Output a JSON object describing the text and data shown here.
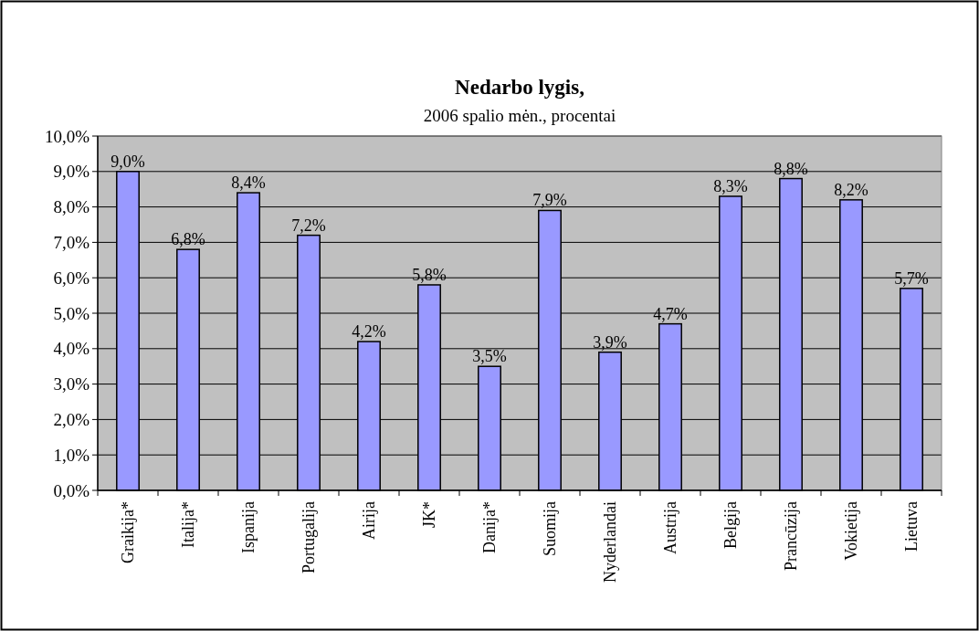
{
  "chart_data": {
    "type": "bar",
    "title": "Nedarbo lygis,",
    "subtitle": "2006 spalio mėn., procentai",
    "categories": [
      "Graikija*",
      "Italija*",
      "Ispanija",
      "Portugalija",
      "Airija",
      "JK*",
      "Danija*",
      "Suomija",
      "Nyderlandai",
      "Austrija",
      "Belgija",
      "Prancūzija",
      "Vokietija",
      "Lietuva"
    ],
    "values": [
      9.0,
      6.8,
      8.4,
      7.2,
      4.2,
      5.8,
      3.5,
      7.9,
      3.9,
      4.7,
      8.3,
      8.8,
      8.2,
      5.7
    ],
    "value_labels": [
      "9,0%",
      "6,8%",
      "8,4%",
      "7,2%",
      "4,2%",
      "5,8%",
      "3,5%",
      "7,9%",
      "3,9%",
      "4,7%",
      "8,3%",
      "8,8%",
      "8,2%",
      "5,7%"
    ],
    "color": "#9999ff",
    "ylim": [
      0,
      10
    ],
    "yticks": [
      {
        "value": 0,
        "label": "0,0%"
      },
      {
        "value": 1,
        "label": "1,0%"
      },
      {
        "value": 2,
        "label": "2,0%"
      },
      {
        "value": 3,
        "label": "3,0%"
      },
      {
        "value": 4,
        "label": "4,0%"
      },
      {
        "value": 5,
        "label": "5,0%"
      },
      {
        "value": 6,
        "label": "6,0%"
      },
      {
        "value": 7,
        "label": "7,0%"
      },
      {
        "value": 8,
        "label": "8,0%"
      },
      {
        "value": 9,
        "label": "9,0%"
      },
      {
        "value": 10,
        "label": "10,0%"
      }
    ],
    "grid": "y"
  }
}
